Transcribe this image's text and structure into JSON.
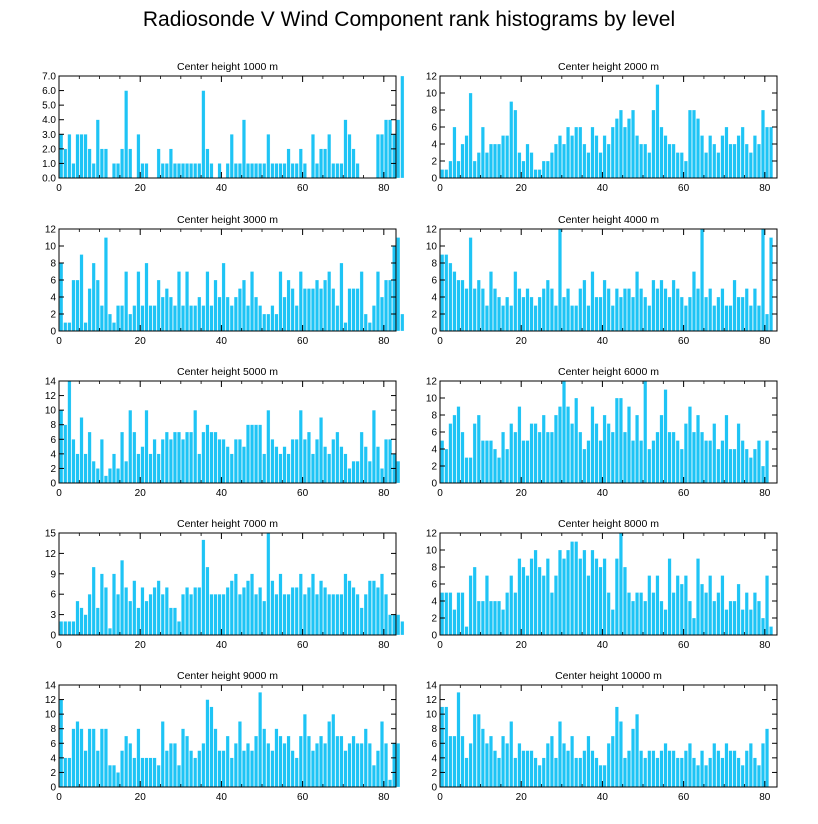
{
  "page_title": "Radiosonde V Wind Component rank histograms by level",
  "colors": {
    "bar": "#1ec4f5",
    "bar_edge": "#ffffff",
    "axis": "#000000"
  },
  "chart_data": [
    {
      "type": "bar",
      "title": "Center height 1000 m",
      "x_range": [
        0,
        83
      ],
      "xticks": [
        0,
        20,
        40,
        60,
        80
      ],
      "ylim": [
        0,
        7
      ],
      "yticks": [
        0,
        1,
        2,
        3,
        4,
        5,
        6,
        7
      ],
      "ytick_labels": [
        "0.0",
        "1.0",
        "2.0",
        "3.0",
        "4.0",
        "5.0",
        "6.0",
        "7.0"
      ],
      "values": [
        3,
        2,
        3,
        1,
        3,
        3,
        3,
        2,
        1,
        4,
        2,
        2,
        0,
        1,
        1,
        2,
        6,
        2,
        0,
        3,
        1,
        1,
        0,
        0,
        2,
        1,
        1,
        2,
        1,
        1,
        1,
        1,
        1,
        1,
        1,
        6,
        2,
        1,
        0,
        1,
        0,
        1,
        3,
        1,
        1,
        4,
        1,
        1,
        1,
        1,
        1,
        3,
        1,
        1,
        1,
        1,
        2,
        1,
        1,
        2,
        1,
        0,
        3,
        1,
        2,
        2,
        3,
        1,
        1,
        1,
        4,
        3,
        2,
        1,
        0,
        0,
        0,
        0,
        3,
        3,
        4,
        4,
        3,
        4,
        7
      ]
    },
    {
      "type": "bar",
      "title": "Center height 2000 m",
      "x_range": [
        0,
        83
      ],
      "xticks": [
        0,
        20,
        40,
        60,
        80
      ],
      "ylim": [
        0,
        12
      ],
      "yticks": [
        0,
        2,
        4,
        6,
        8,
        10,
        12
      ],
      "ytick_labels": [
        "0",
        "2",
        "4",
        "6",
        "8",
        "10",
        "12"
      ],
      "values": [
        1,
        1,
        2,
        6,
        2,
        4,
        5,
        10,
        2,
        3,
        6,
        3,
        4,
        4,
        4,
        5,
        5,
        9,
        8,
        3,
        2,
        4,
        3,
        1,
        1,
        2,
        2,
        3,
        4,
        5,
        4,
        6,
        5,
        6,
        6,
        4,
        3,
        6,
        5,
        3,
        5,
        4,
        6,
        7,
        8,
        6,
        7,
        8,
        5,
        4,
        4,
        3,
        8,
        11,
        6,
        5,
        4,
        4,
        3,
        3,
        2,
        8,
        8,
        7,
        5,
        3,
        5,
        4,
        3,
        5,
        6,
        4,
        4,
        5,
        6,
        4,
        3,
        5,
        4,
        8,
        6,
        6
      ]
    },
    {
      "type": "bar",
      "title": "Center height 3000 m",
      "x_range": [
        0,
        83
      ],
      "xticks": [
        0,
        20,
        40,
        60,
        80
      ],
      "ylim": [
        0,
        12
      ],
      "yticks": [
        0,
        2,
        4,
        6,
        8,
        10,
        12
      ],
      "ytick_labels": [
        "0",
        "2",
        "4",
        "6",
        "8",
        "10",
        "12"
      ],
      "values": [
        8,
        1,
        1,
        6,
        6,
        9,
        1,
        5,
        8,
        6,
        3,
        11,
        2,
        1,
        3,
        3,
        7,
        2,
        3,
        7,
        3,
        8,
        3,
        3,
        6,
        4,
        5,
        4,
        3,
        7,
        3,
        7,
        3,
        3,
        4,
        3,
        7,
        3,
        6,
        4,
        8,
        4,
        3,
        4,
        5,
        6,
        3,
        7,
        4,
        3,
        2,
        2,
        3,
        2,
        7,
        4,
        6,
        5,
        3,
        7,
        5,
        5,
        5,
        6,
        5,
        6,
        7,
        5,
        3,
        8,
        1,
        5,
        5,
        5,
        7,
        2,
        1,
        3,
        7,
        4,
        6,
        6,
        10,
        11,
        2
      ]
    },
    {
      "type": "bar",
      "title": "Center height 4000 m",
      "x_range": [
        0,
        83
      ],
      "xticks": [
        0,
        20,
        40,
        60,
        80
      ],
      "ylim": [
        0,
        12
      ],
      "yticks": [
        0,
        2,
        4,
        6,
        8,
        10,
        12
      ],
      "ytick_labels": [
        "0",
        "2",
        "4",
        "6",
        "8",
        "10",
        "12"
      ],
      "values": [
        9,
        9,
        8,
        7,
        6,
        6,
        5,
        11,
        5,
        6,
        5,
        3,
        7,
        5,
        4,
        3,
        4,
        3,
        7,
        5,
        4,
        5,
        4,
        3,
        4,
        5,
        6,
        5,
        3,
        12,
        4,
        5,
        3,
        3,
        5,
        6,
        3,
        7,
        4,
        4,
        6,
        5,
        3,
        5,
        4,
        5,
        5,
        4,
        7,
        5,
        4,
        3,
        6,
        5,
        6,
        5,
        4,
        6,
        5,
        4,
        3,
        4,
        7,
        5,
        12,
        4,
        5,
        3,
        4,
        5,
        3,
        3,
        6,
        4,
        4,
        5,
        3,
        5,
        3,
        12,
        2,
        11
      ]
    },
    {
      "type": "bar",
      "title": "Center height 5000 m",
      "x_range": [
        0,
        83
      ],
      "xticks": [
        0,
        20,
        40,
        60,
        80
      ],
      "ylim": [
        0,
        14
      ],
      "yticks": [
        0,
        2,
        4,
        6,
        8,
        10,
        12,
        14
      ],
      "ytick_labels": [
        "0",
        "2",
        "4",
        "6",
        "8",
        "10",
        "12",
        "14"
      ],
      "values": [
        10,
        8,
        14,
        6,
        4,
        9,
        4,
        7,
        3,
        2,
        6,
        1,
        2,
        4,
        2,
        7,
        3,
        10,
        7,
        4,
        5,
        10,
        4,
        6,
        4,
        6,
        7,
        6,
        7,
        7,
        6,
        7,
        7,
        10,
        4,
        7,
        8,
        7,
        7,
        6,
        6,
        5,
        4,
        6,
        6,
        5,
        8,
        8,
        8,
        8,
        4,
        10,
        6,
        5,
        4,
        5,
        4,
        6,
        6,
        10,
        6,
        7,
        4,
        6,
        9,
        5,
        4,
        6,
        7,
        5,
        4,
        2,
        3,
        3,
        7,
        5,
        3,
        10,
        5,
        2,
        6,
        6,
        4,
        3
      ]
    },
    {
      "type": "bar",
      "title": "Center height 6000 m",
      "x_range": [
        0,
        83
      ],
      "xticks": [
        0,
        20,
        40,
        60,
        80
      ],
      "ylim": [
        0,
        12
      ],
      "yticks": [
        0,
        2,
        4,
        6,
        8,
        10,
        12
      ],
      "ytick_labels": [
        "0",
        "2",
        "4",
        "6",
        "8",
        "10",
        "12"
      ],
      "values": [
        5,
        4,
        7,
        8,
        9,
        6,
        3,
        3,
        7,
        8,
        5,
        5,
        5,
        4,
        3,
        6,
        4,
        7,
        6,
        9,
        5,
        5,
        7,
        7,
        6,
        8,
        6,
        6,
        8,
        9,
        12,
        9,
        7,
        10,
        6,
        4,
        5,
        9,
        7,
        5,
        8,
        7,
        6,
        10,
        10,
        6,
        9,
        5,
        8,
        5,
        12,
        4,
        5,
        6,
        8,
        11,
        6,
        6,
        5,
        4,
        7,
        9,
        6,
        8,
        6,
        5,
        5,
        7,
        4,
        5,
        8,
        4,
        4,
        7,
        5,
        4,
        3,
        4,
        5,
        2,
        5
      ]
    },
    {
      "type": "bar",
      "title": "Center height 7000 m",
      "x_range": [
        0,
        83
      ],
      "xticks": [
        0,
        20,
        40,
        60,
        80
      ],
      "ylim": [
        0,
        15
      ],
      "yticks": [
        0,
        3,
        6,
        9,
        12,
        15
      ],
      "ytick_labels": [
        "0",
        "3",
        "6",
        "9",
        "12",
        "15"
      ],
      "values": [
        2,
        2,
        2,
        2,
        5,
        4,
        3,
        6,
        10,
        4,
        9,
        7,
        1,
        9,
        6,
        11,
        7,
        5,
        8,
        4,
        7,
        5,
        6,
        7,
        8,
        6,
        7,
        4,
        4,
        2,
        6,
        7,
        6,
        7,
        7,
        14,
        10,
        6,
        6,
        6,
        6,
        7,
        8,
        9,
        6,
        7,
        8,
        9,
        6,
        7,
        5,
        15,
        8,
        6,
        9,
        6,
        6,
        7,
        7,
        9,
        6,
        7,
        9,
        6,
        8,
        7,
        6,
        6,
        6,
        6,
        9,
        8,
        7,
        6,
        4,
        6,
        8,
        8,
        7,
        9,
        6,
        3,
        3,
        3,
        2
      ]
    },
    {
      "type": "bar",
      "title": "Center height 8000 m",
      "x_range": [
        0,
        83
      ],
      "xticks": [
        0,
        20,
        40,
        60,
        80
      ],
      "ylim": [
        0,
        12
      ],
      "yticks": [
        0,
        2,
        4,
        6,
        8,
        10,
        12
      ],
      "ytick_labels": [
        "0",
        "2",
        "4",
        "6",
        "8",
        "10",
        "12"
      ],
      "values": [
        5,
        5,
        5,
        3,
        5,
        5,
        1,
        7,
        8,
        4,
        4,
        7,
        4,
        4,
        4,
        3,
        5,
        7,
        5,
        9,
        8,
        7,
        9,
        10,
        8,
        7,
        9,
        5,
        7,
        10,
        9,
        10,
        11,
        11,
        9,
        10,
        7,
        10,
        9,
        8,
        9,
        5,
        3,
        9,
        12,
        8,
        5,
        4,
        5,
        5,
        4,
        7,
        5,
        7,
        4,
        3,
        9,
        5,
        7,
        6,
        7,
        4,
        2,
        9,
        6,
        5,
        7,
        4,
        5,
        7,
        3,
        4,
        4,
        6,
        3,
        5,
        3,
        5,
        4,
        2,
        7,
        1
      ]
    },
    {
      "type": "bar",
      "title": "Center height 9000 m",
      "x_range": [
        0,
        83
      ],
      "xticks": [
        0,
        20,
        40,
        60,
        80
      ],
      "ylim": [
        0,
        14
      ],
      "yticks": [
        0,
        2,
        4,
        6,
        8,
        10,
        12,
        14
      ],
      "ytick_labels": [
        "0",
        "2",
        "4",
        "6",
        "8",
        "10",
        "12",
        "14"
      ],
      "values": [
        12,
        4,
        4,
        8,
        9,
        8,
        5,
        8,
        8,
        5,
        8,
        8,
        3,
        3,
        2,
        5,
        7,
        6,
        4,
        8,
        4,
        4,
        4,
        4,
        3,
        9,
        5,
        6,
        6,
        3,
        8,
        7,
        5,
        4,
        5,
        6,
        12,
        11,
        8,
        5,
        5,
        7,
        4,
        6,
        9,
        5,
        6,
        5,
        7,
        13,
        8,
        6,
        5,
        8,
        7,
        6,
        7,
        5,
        4,
        7,
        10,
        7,
        5,
        6,
        7,
        6,
        9,
        10,
        7,
        7,
        5,
        6,
        7,
        6,
        6,
        8,
        6,
        3,
        5,
        9,
        6,
        1,
        6,
        6
      ]
    },
    {
      "type": "bar",
      "title": "Center height 10000 m",
      "x_range": [
        0,
        83
      ],
      "xticks": [
        0,
        20,
        40,
        60,
        80
      ],
      "ylim": [
        0,
        14
      ],
      "yticks": [
        0,
        2,
        4,
        6,
        8,
        10,
        12,
        14
      ],
      "ytick_labels": [
        "0",
        "2",
        "4",
        "6",
        "8",
        "10",
        "12",
        "14"
      ],
      "values": [
        11,
        11,
        7,
        7,
        13,
        7,
        4,
        6,
        10,
        10,
        8,
        6,
        7,
        5,
        4,
        7,
        6,
        9,
        4,
        6,
        5,
        5,
        5,
        4,
        3,
        4,
        6,
        7,
        4,
        9,
        6,
        5,
        7,
        4,
        4,
        5,
        7,
        5,
        4,
        3,
        3,
        6,
        7,
        11,
        9,
        4,
        5,
        8,
        10,
        5,
        4,
        5,
        5,
        4,
        5,
        6,
        5,
        5,
        4,
        4,
        5,
        6,
        4,
        3,
        5,
        3,
        4,
        6,
        5,
        4,
        6,
        5,
        5,
        4,
        3,
        5,
        6,
        4,
        3,
        6,
        8
      ]
    }
  ]
}
